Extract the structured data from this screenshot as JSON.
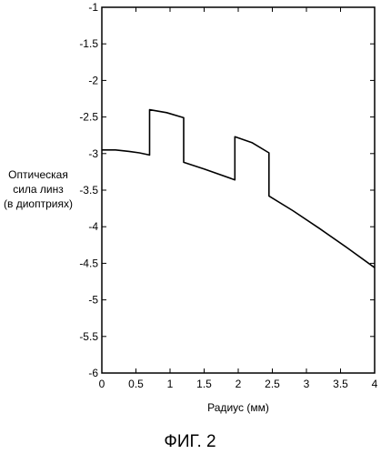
{
  "chart_data": {
    "type": "line",
    "xlabel": "Радиус (мм)",
    "ylabel_lines": [
      "Оптическая",
      "сила линз",
      "(в диоптриях)"
    ],
    "xlim": [
      0,
      4
    ],
    "ylim": [
      -6,
      -1
    ],
    "x_ticks": [
      "0",
      "0.5",
      "1",
      "1.5",
      "2",
      "2.5",
      "3",
      "3.5",
      "4"
    ],
    "y_ticks": [
      "-1",
      "-1.5",
      "-2",
      "-2.5",
      "-3",
      "-3.5",
      "-4",
      "-4.5",
      "-5",
      "-5.5",
      "-6"
    ],
    "grid": false,
    "series": [
      {
        "x": [
          0,
          0.2,
          0.4,
          0.55,
          0.7,
          0.7,
          0.95,
          1.2,
          1.2,
          1.5,
          1.95,
          1.95,
          2.2,
          2.45,
          2.45,
          2.8,
          3.2,
          3.6,
          4.0
        ],
        "y": [
          -2.95,
          -2.95,
          -2.97,
          -2.99,
          -3.02,
          -2.4,
          -2.44,
          -2.51,
          -3.12,
          -3.21,
          -3.36,
          -2.77,
          -2.85,
          -2.99,
          -3.58,
          -3.78,
          -4.03,
          -4.29,
          -4.56
        ]
      }
    ],
    "line_color": "#000000"
  },
  "caption": "ФИГ. 2"
}
